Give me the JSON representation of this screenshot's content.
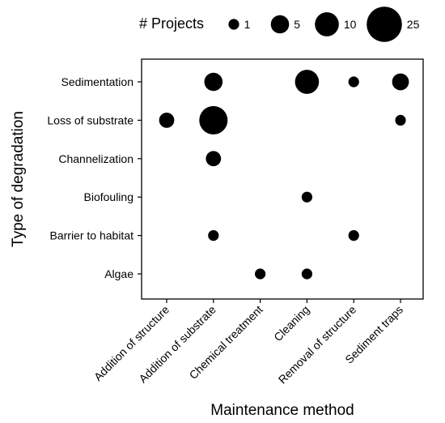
{
  "chart_data": {
    "type": "scatter",
    "xlabel": "Maintenance method",
    "ylabel": "Type of degradation",
    "x_categories": [
      "Addition of structure",
      "Addition of substrate",
      "Chemical treatment",
      "Cleaning",
      "Removal of structure",
      "Sediment traps"
    ],
    "y_categories": [
      "Algae",
      "Barrier to habitat",
      "Biofouling",
      "Channelization",
      "Loss of substrate",
      "Sedimentation"
    ],
    "size_legend": {
      "title": "# Projects",
      "values": [
        1,
        5,
        10,
        25
      ],
      "placement": "top"
    },
    "points": [
      {
        "x": "Addition of substrate",
        "y": "Sedimentation",
        "size": 5
      },
      {
        "x": "Cleaning",
        "y": "Sedimentation",
        "size": 10
      },
      {
        "x": "Removal of structure",
        "y": "Sedimentation",
        "size": 1
      },
      {
        "x": "Sediment traps",
        "y": "Sedimentation",
        "size": 4
      },
      {
        "x": "Addition of structure",
        "y": "Loss of substrate",
        "size": 3
      },
      {
        "x": "Addition of substrate",
        "y": "Loss of substrate",
        "size": 15
      },
      {
        "x": "Sediment traps",
        "y": "Loss of substrate",
        "size": 1
      },
      {
        "x": "Addition of substrate",
        "y": "Channelization",
        "size": 3
      },
      {
        "x": "Cleaning",
        "y": "Biofouling",
        "size": 1
      },
      {
        "x": "Addition of substrate",
        "y": "Barrier to habitat",
        "size": 1
      },
      {
        "x": "Removal of structure",
        "y": "Barrier to habitat",
        "size": 1
      },
      {
        "x": "Chemical treatment",
        "y": "Algae",
        "size": 1
      },
      {
        "x": "Cleaning",
        "y": "Algae",
        "size": 1
      }
    ],
    "grid": false,
    "colors": {
      "marker": "#000000",
      "panel_border": "#000000",
      "background": "#ffffff"
    }
  }
}
